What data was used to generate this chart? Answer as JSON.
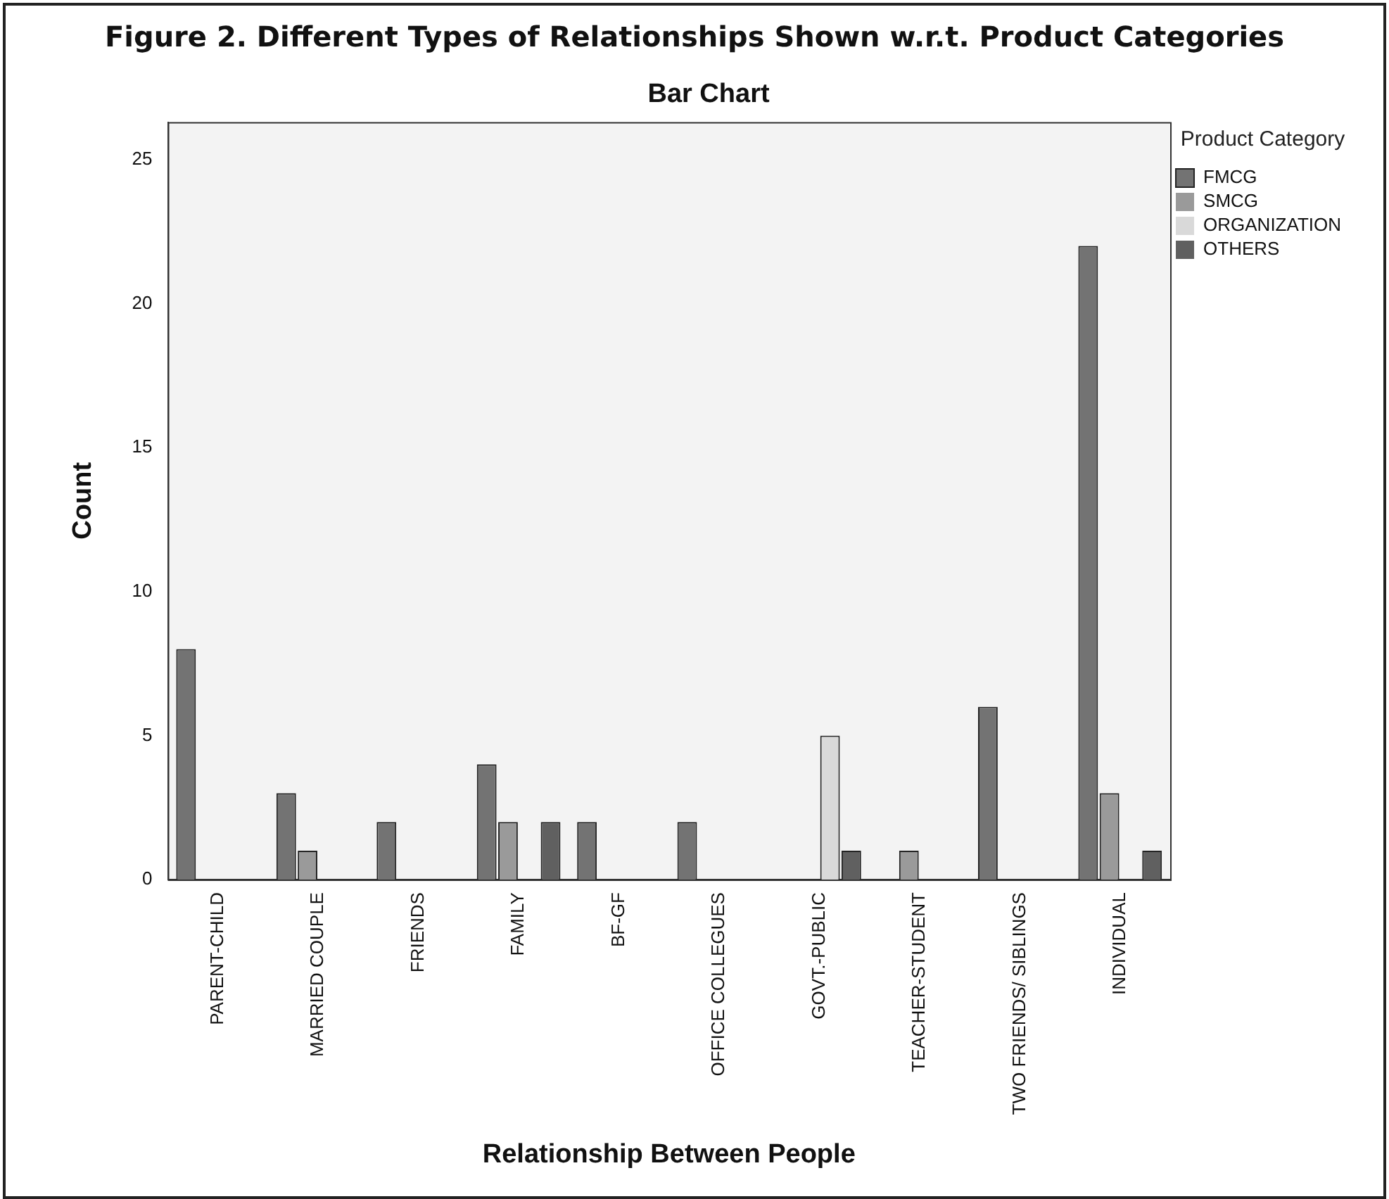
{
  "chart_data": {
    "type": "bar",
    "title": "Figure 2. Different Types of Relationships Shown w.r.t. Product Categories",
    "subtitle": "Bar Chart",
    "xlabel": "Relationship Between People",
    "ylabel": "Count",
    "legend_title": "Product Category",
    "legend": "top right",
    "grid": false,
    "categories": [
      "PARENT-CHILD",
      "MARRIED COUPLE",
      "FRIENDS",
      "FAMILY",
      "BF-GF",
      "OFFICE COLLEGUES",
      "GOVT.-PUBLIC",
      "TEACHER-STUDENT",
      "TWO FRIENDS/ SIBLINGS",
      "INDIVIDUAL"
    ],
    "series": [
      {
        "name": "FMCG",
        "color": "#737373",
        "values": [
          8,
          3,
          2,
          4,
          2,
          2,
          0,
          0,
          6,
          22
        ]
      },
      {
        "name": "SMCG",
        "color": "#9a9a9a",
        "values": [
          0,
          1,
          0,
          2,
          0,
          0,
          0,
          1,
          0,
          3
        ]
      },
      {
        "name": "ORGANIZATION",
        "color": "#d9d9d9",
        "values": [
          0,
          0,
          0,
          0,
          0,
          0,
          5,
          0,
          0,
          0
        ]
      },
      {
        "name": "OTHERS",
        "color": "#606060",
        "values": [
          0,
          0,
          0,
          2,
          0,
          0,
          1,
          0,
          0,
          1
        ]
      }
    ],
    "ylim": [
      0,
      26.3
    ],
    "yticks": [
      0,
      5,
      10,
      15,
      20,
      25
    ]
  }
}
